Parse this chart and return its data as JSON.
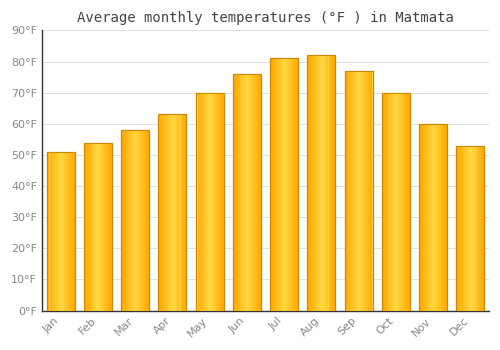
{
  "title": "Average monthly temperatures (°F ) in Matmata",
  "months": [
    "Jan",
    "Feb",
    "Mar",
    "Apr",
    "May",
    "Jun",
    "Jul",
    "Aug",
    "Sep",
    "Oct",
    "Nov",
    "Dec"
  ],
  "values": [
    51,
    54,
    58,
    63,
    70,
    76,
    81,
    82,
    77,
    70,
    60,
    53
  ],
  "bar_color_main": "#FFA500",
  "bar_color_light": "#FFD040",
  "bar_color_edge": "#CC8800",
  "ylim": [
    0,
    90
  ],
  "yticks": [
    0,
    10,
    20,
    30,
    40,
    50,
    60,
    70,
    80,
    90
  ],
  "ytick_labels": [
    "0°F",
    "10°F",
    "20°F",
    "30°F",
    "40°F",
    "50°F",
    "60°F",
    "70°F",
    "80°F",
    "90°F"
  ],
  "background_color": "#ffffff",
  "grid_color": "#e0e0e0",
  "title_fontsize": 10,
  "tick_fontsize": 8,
  "bar_width": 0.75
}
